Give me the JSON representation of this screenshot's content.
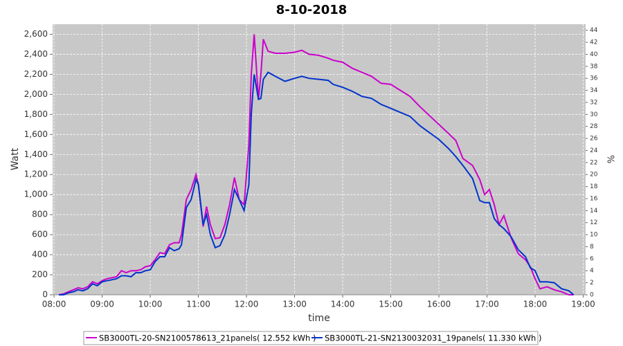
{
  "chart_data": {
    "type": "line",
    "title": "8-10-2018",
    "x_label": "time",
    "y_label": "Watt",
    "y2_label": "%",
    "x": [
      8.1,
      8.2,
      8.3,
      8.4,
      8.5,
      8.6,
      8.7,
      8.8,
      8.9,
      9.0,
      9.1,
      9.2,
      9.3,
      9.4,
      9.5,
      9.6,
      9.7,
      9.8,
      9.9,
      10.0,
      10.1,
      10.2,
      10.3,
      10.4,
      10.5,
      10.6,
      10.65,
      10.75,
      10.85,
      10.95,
      11.0,
      11.1,
      11.17,
      11.25,
      11.35,
      11.45,
      11.55,
      11.65,
      11.75,
      11.85,
      11.95,
      12.05,
      12.1,
      12.16,
      12.25,
      12.3,
      12.35,
      12.45,
      12.6,
      12.8,
      13.0,
      13.15,
      13.3,
      13.5,
      13.7,
      13.8,
      14.0,
      14.2,
      14.4,
      14.6,
      14.8,
      15.0,
      15.2,
      15.4,
      15.6,
      15.8,
      16.0,
      16.2,
      16.35,
      16.5,
      16.7,
      16.85,
      16.95,
      17.05,
      17.15,
      17.25,
      17.35,
      17.5,
      17.65,
      17.8,
      17.9,
      18.0,
      18.1,
      18.25,
      18.4,
      18.55,
      18.7,
      18.8
    ],
    "series": [
      {
        "name": "SB3000TL-20-SN2100578613_21panels( 12.552 kWh )",
        "color": "#cc00cc",
        "values": [
          0,
          10,
          30,
          50,
          70,
          60,
          80,
          130,
          110,
          140,
          160,
          170,
          180,
          240,
          220,
          240,
          240,
          250,
          280,
          290,
          350,
          420,
          410,
          500,
          520,
          520,
          600,
          950,
          1050,
          1200,
          1100,
          680,
          880,
          700,
          560,
          570,
          700,
          900,
          1170,
          950,
          900,
          1500,
          2200,
          2600,
          1950,
          2200,
          2550,
          2430,
          2410,
          2410,
          2420,
          2440,
          2400,
          2390,
          2360,
          2340,
          2320,
          2260,
          2220,
          2180,
          2110,
          2100,
          2040,
          1980,
          1880,
          1790,
          1700,
          1610,
          1540,
          1360,
          1290,
          1150,
          1000,
          1050,
          900,
          700,
          790,
          570,
          410,
          350,
          280,
          160,
          60,
          80,
          50,
          30,
          0,
          0
        ]
      },
      {
        "name": "SB3000TL-21-SN2130032031_19panels( 11.330 kWh )",
        "color": "#0033cc",
        "values": [
          0,
          0,
          20,
          30,
          50,
          40,
          60,
          110,
          90,
          130,
          140,
          150,
          160,
          190,
          190,
          180,
          220,
          220,
          240,
          250,
          330,
          380,
          380,
          470,
          440,
          460,
          500,
          870,
          950,
          1150,
          1100,
          700,
          800,
          600,
          470,
          490,
          600,
          800,
          1050,
          950,
          840,
          1100,
          1800,
          2200,
          1950,
          1960,
          2150,
          2220,
          2180,
          2130,
          2160,
          2180,
          2160,
          2150,
          2140,
          2100,
          2070,
          2030,
          1980,
          1960,
          1900,
          1860,
          1820,
          1780,
          1690,
          1620,
          1550,
          1460,
          1380,
          1290,
          1160,
          940,
          920,
          920,
          760,
          700,
          660,
          580,
          450,
          380,
          270,
          240,
          130,
          130,
          120,
          60,
          40,
          0
        ]
      }
    ],
    "xlim": [
      7.97,
      19.05
    ],
    "xticks": [
      {
        "value": 8,
        "label": "08:00"
      },
      {
        "value": 9,
        "label": "09:00"
      },
      {
        "value": 10,
        "label": "10:00"
      },
      {
        "value": 11,
        "label": "11:00"
      },
      {
        "value": 12,
        "label": "12:00"
      },
      {
        "value": 13,
        "label": "13:00"
      },
      {
        "value": 14,
        "label": "14:00"
      },
      {
        "value": 15,
        "label": "15:00"
      },
      {
        "value": 16,
        "label": "16:00"
      },
      {
        "value": 17,
        "label": "17:00"
      },
      {
        "value": 18,
        "label": "18:00"
      },
      {
        "value": 19,
        "label": "19:00"
      }
    ],
    "ylim": [
      0,
      2700
    ],
    "yticks": [
      0,
      200,
      400,
      600,
      800,
      {
        "value": 1000,
        "label": "1,000"
      },
      {
        "value": 1200,
        "label": "1,200"
      },
      {
        "value": 1400,
        "label": "1,400"
      },
      {
        "value": 1600,
        "label": "1,600"
      },
      {
        "value": 1800,
        "label": "1,800"
      },
      {
        "value": 2000,
        "label": "2,000"
      },
      {
        "value": 2200,
        "label": "2,200"
      },
      {
        "value": 2400,
        "label": "2,400"
      },
      {
        "value": 2600,
        "label": "2,600"
      }
    ],
    "y2lim": [
      0,
      45
    ],
    "y2ticks": [
      0,
      2,
      4,
      6,
      8,
      10,
      12,
      14,
      16,
      18,
      20,
      22,
      24,
      26,
      28,
      30,
      32,
      34,
      36,
      38,
      40,
      42,
      44
    ],
    "grid": true
  }
}
